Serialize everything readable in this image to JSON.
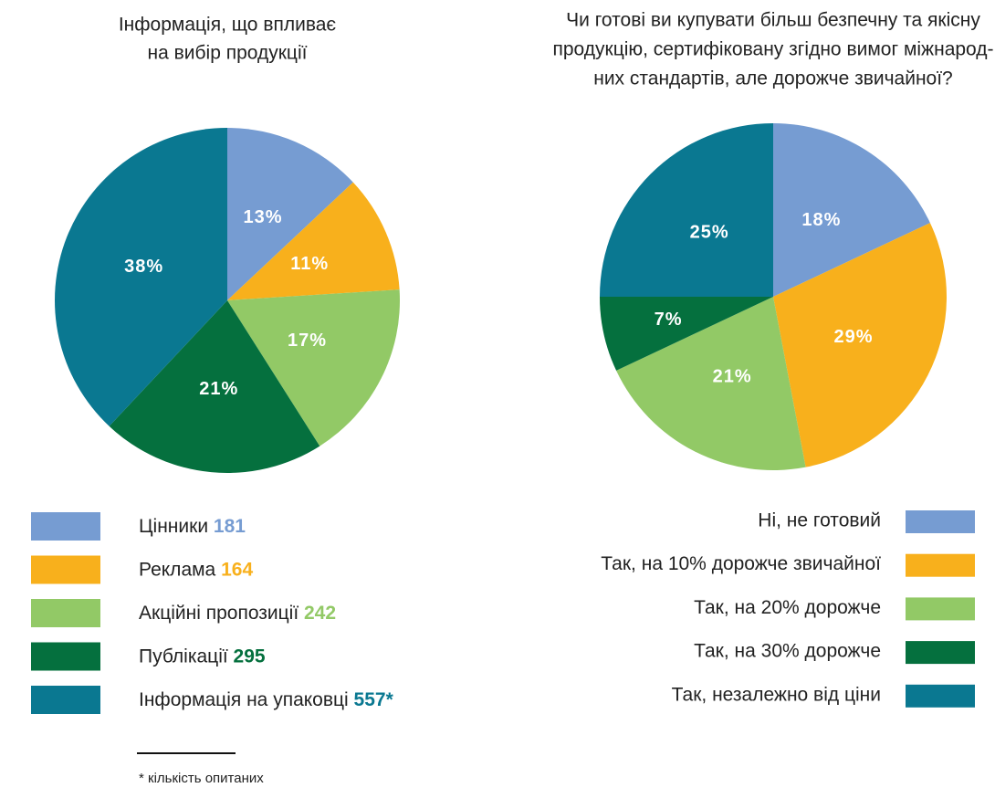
{
  "chart_data": [
    {
      "type": "pie",
      "title": [
        "Інформація, що впливає",
        "на вибір продукції"
      ],
      "categories": [
        "Цінники",
        "Реклама",
        "Акційні пропозиції",
        "Публікації",
        "Інформація на упаковці"
      ],
      "values": [
        13,
        11,
        17,
        21,
        38
      ],
      "value_labels": [
        "13%",
        "11%",
        "17%",
        "21%",
        "38%"
      ],
      "counts": [
        181,
        164,
        242,
        295,
        557
      ],
      "count_labels": [
        "181",
        "164",
        "242",
        "295",
        "557*"
      ],
      "colors": [
        "#769cd2",
        "#f8b01c",
        "#92c966",
        "#05703e",
        "#0a7891"
      ],
      "note": "* кількість опитаних"
    },
    {
      "type": "pie",
      "title": [
        "Чи готові ви купувати більш безпечну та якісну",
        "продукцію, сертифіковану згідно вимог міжнарод-",
        "них стандартів, але дорожче звичайної?"
      ],
      "categories": [
        "Ні, не готовий",
        "Так, на 10% дорожче звичайної",
        "Так, на 20% дорожче",
        "Так, на 30% дорожче",
        "Так, незалежно від ціни"
      ],
      "values": [
        18,
        29,
        21,
        7,
        25
      ],
      "value_labels": [
        "18%",
        "29%",
        "21%",
        "7%",
        "25%"
      ],
      "colors": [
        "#769cd2",
        "#f8b01c",
        "#92c966",
        "#05703e",
        "#0a7891"
      ]
    }
  ]
}
